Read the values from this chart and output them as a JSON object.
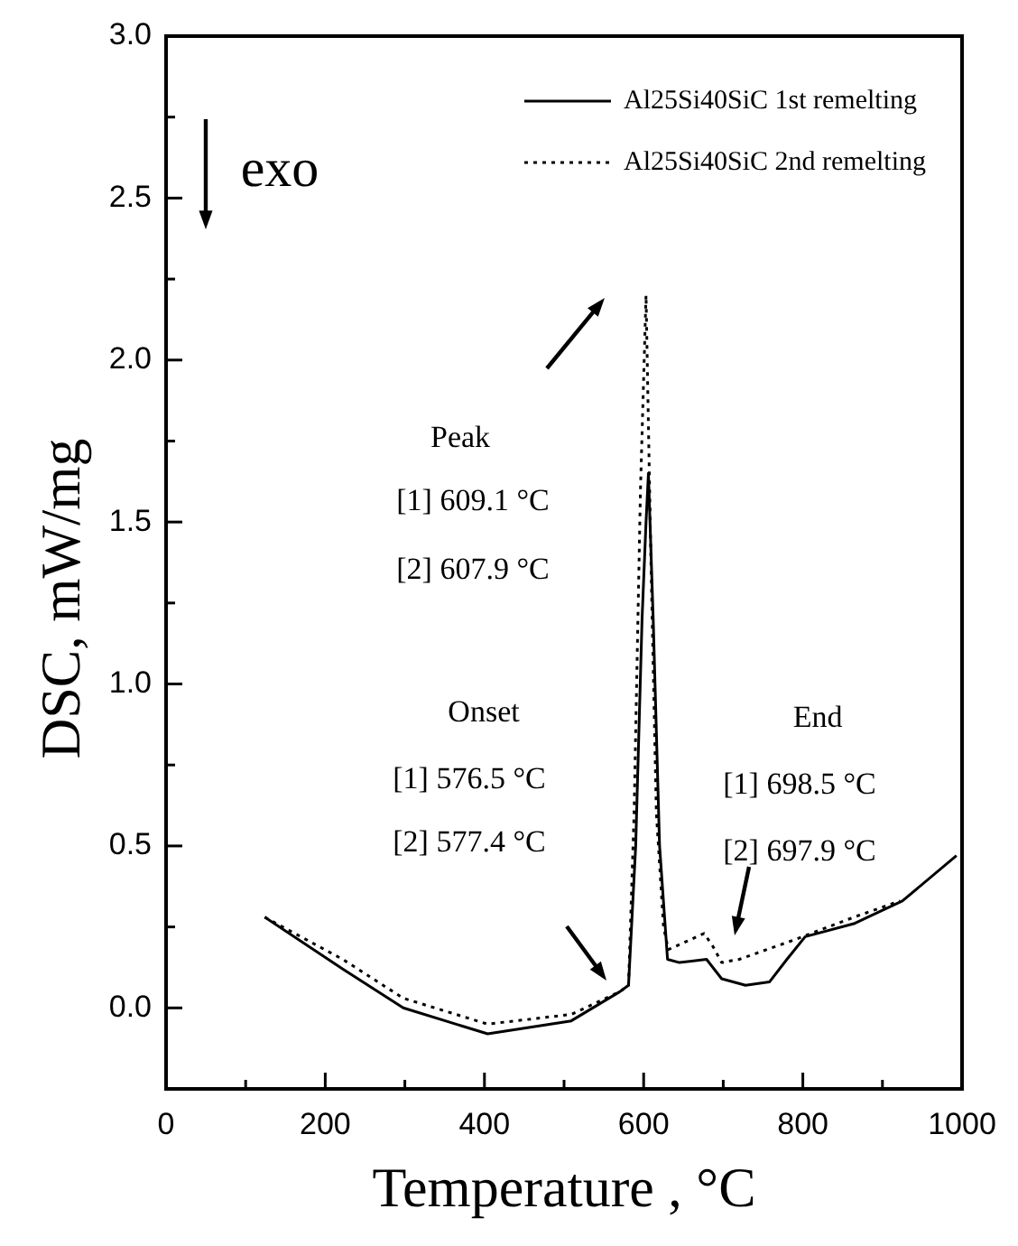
{
  "chart_data": {
    "type": "line",
    "xlabel": "Temperature , °C",
    "ylabel": "DSC, mW/mg",
    "xlim": [
      0,
      1000
    ],
    "xticks": [
      0,
      {
        "value": 100,
        "label": null
      },
      200,
      {
        "value": 300,
        "label": null
      },
      400,
      {
        "value": 500,
        "label": null
      },
      600,
      {
        "value": 700,
        "label": null
      },
      800,
      {
        "value": 900,
        "label": null
      },
      1000
    ],
    "ylim": [
      -0.25,
      3.0
    ],
    "yticks": [
      {
        "value": 0,
        "label": "0.0"
      },
      {
        "value": 0.25,
        "label": null
      },
      {
        "value": 0.5,
        "label": "0.5"
      },
      {
        "value": 0.75,
        "label": null
      },
      {
        "value": 1,
        "label": "1.0"
      },
      {
        "value": 1.25,
        "label": null
      },
      {
        "value": 1.5,
        "label": "1.5"
      },
      {
        "value": 1.75,
        "label": null
      },
      {
        "value": 2,
        "label": "2.0"
      },
      {
        "value": 2.25,
        "label": null
      },
      {
        "value": 2.5,
        "label": "2.5"
      },
      {
        "value": 2.75,
        "label": null
      },
      {
        "value": 3,
        "label": "3.0"
      }
    ],
    "grid": false,
    "legend": "top right",
    "marker": "none",
    "series": [
      {
        "name": "Al25Si40SiC 1st remelting",
        "color": "#000000",
        "line_style": "solid",
        "x": [
          124,
          222,
          298,
          404,
          509,
          570,
          581,
          590,
          598,
          603,
          606,
          612,
          620,
          630,
          645,
          679,
          698,
          728,
          758,
          780,
          803,
          864,
          925,
          993
        ],
        "values": [
          0.28,
          0.12,
          0.0,
          -0.08,
          -0.04,
          0.05,
          0.07,
          0.5,
          1.2,
          1.5,
          1.65,
          1.2,
          0.5,
          0.15,
          0.14,
          0.15,
          0.09,
          0.07,
          0.08,
          0.15,
          0.22,
          0.26,
          0.33,
          0.47
        ]
      },
      {
        "name": "Al25Si40SiC 2nd remelting",
        "color": "#000000",
        "line_style": "dotted",
        "x": [
          124,
          222,
          298,
          404,
          509,
          570,
          581,
          588,
          596,
          603,
          609,
          616,
          625,
          631,
          676,
          687,
          698,
          720,
          789,
          864,
          922
        ],
        "values": [
          0.28,
          0.15,
          0.03,
          -0.05,
          -0.02,
          0.05,
          0.07,
          0.6,
          1.6,
          2.2,
          1.4,
          0.6,
          0.25,
          0.18,
          0.23,
          0.19,
          0.14,
          0.15,
          0.21,
          0.28,
          0.33
        ]
      }
    ],
    "annotations": [
      "exo",
      "Peak",
      "[1] 609.1 °C",
      "[2] 607.9 °C",
      "Onset",
      "[1] 576.5 °C",
      "[2] 577.4 °C",
      "End",
      "[1] 698.5 °C",
      "[2] 697.9 °C"
    ]
  }
}
